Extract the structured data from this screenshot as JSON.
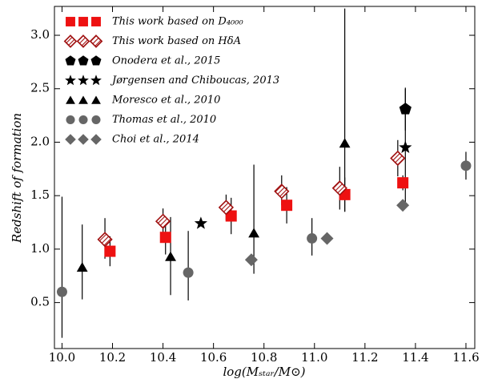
{
  "chart_data": {
    "type": "scatter",
    "xlabel": "log(Mₛₜₐᵣ/M⊙)",
    "ylabel": "Redshift of formation",
    "xlim": [
      9.97,
      11.635
    ],
    "ylim": [
      0.07,
      3.27
    ],
    "xticks": [
      {
        "value": 10.0,
        "label": "10.0"
      },
      {
        "value": 10.2,
        "label": "10.2"
      },
      {
        "value": 10.4,
        "label": "10.4"
      },
      {
        "value": 10.6,
        "label": "10.6"
      },
      {
        "value": 10.8,
        "label": "10.8"
      },
      {
        "value": 11.0,
        "label": "11.0"
      },
      {
        "value": 11.2,
        "label": "11.2"
      },
      {
        "value": 11.4,
        "label": "11.4"
      },
      {
        "value": 11.6,
        "label": "11.6"
      }
    ],
    "yticks": [
      0.5,
      {
        "value": 1.0,
        "label": "1.0"
      },
      1.5,
      {
        "value": 2.0,
        "label": "2.0"
      },
      2.5,
      {
        "value": 3.0,
        "label": "3.0"
      }
    ],
    "legend": "upper left",
    "series": [
      {
        "name": "This work based on D₄₀₀₀",
        "marker": "square",
        "color": "#ee1111",
        "x": [
          10.19,
          10.41,
          10.67,
          10.89,
          11.12,
          11.35
        ],
        "values": [
          0.98,
          1.11,
          1.31,
          1.41,
          1.51,
          1.62
        ],
        "err_minus": [
          0.14,
          0.16,
          0.17,
          0.17,
          0.16,
          0.07
        ],
        "err_plus": [
          0.14,
          0.15,
          0.17,
          0.17,
          0.16,
          0.07
        ]
      },
      {
        "name": "This work based on HδA",
        "marker": "hatched-diamond",
        "color": "#a01010",
        "x": [
          10.17,
          10.4,
          10.65,
          10.87,
          11.1,
          11.33
        ],
        "values": [
          1.09,
          1.26,
          1.39,
          1.54,
          1.57,
          1.85
        ],
        "err_minus": [
          0.18,
          0.12,
          0.12,
          0.13,
          0.2,
          0.17
        ],
        "err_plus": [
          0.2,
          0.12,
          0.12,
          0.15,
          0.2,
          0.17
        ]
      },
      {
        "name": "Onodera et al., 2015",
        "marker": "pentagon",
        "color": "#000000",
        "x": [
          11.36
        ],
        "values": [
          2.31
        ],
        "err_minus": [
          0.2
        ],
        "err_plus": [
          0.2
        ]
      },
      {
        "name": "Jørgensen and Chiboucas, 2013",
        "marker": "star",
        "color": "#000000",
        "x": [
          10.55,
          11.36
        ],
        "values": [
          1.24,
          1.95
        ],
        "err_minus": [
          null,
          0.55
        ],
        "err_plus": [
          null,
          0.55
        ]
      },
      {
        "name": "Moresco et al., 2010",
        "marker": "triangle",
        "color": "#000000",
        "x": [
          10.08,
          10.43,
          10.76,
          11.12
        ],
        "values": [
          0.83,
          0.93,
          1.15,
          1.99
        ],
        "err_minus": [
          0.3,
          0.36,
          0.38,
          0.64
        ],
        "err_plus": [
          0.4,
          0.37,
          0.64,
          1.26
        ]
      },
      {
        "name": "Thomas et al., 2010",
        "marker": "circle",
        "color": "#666666",
        "x": [
          10.0,
          10.5,
          10.99,
          11.6
        ],
        "values": [
          0.6,
          0.78,
          1.1,
          1.78
        ],
        "err_minus": [
          0.43,
          0.26,
          0.16,
          0.13
        ],
        "err_plus": [
          0.89,
          0.39,
          0.19,
          0.13
        ]
      },
      {
        "name": "Choi et al., 2014",
        "marker": "diamond",
        "color": "#666666",
        "x": [
          10.75,
          11.05,
          11.35
        ],
        "values": [
          0.9,
          1.1,
          1.41
        ],
        "err_minus": [
          null,
          null,
          null
        ],
        "err_plus": [
          null,
          null,
          null
        ]
      }
    ]
  }
}
